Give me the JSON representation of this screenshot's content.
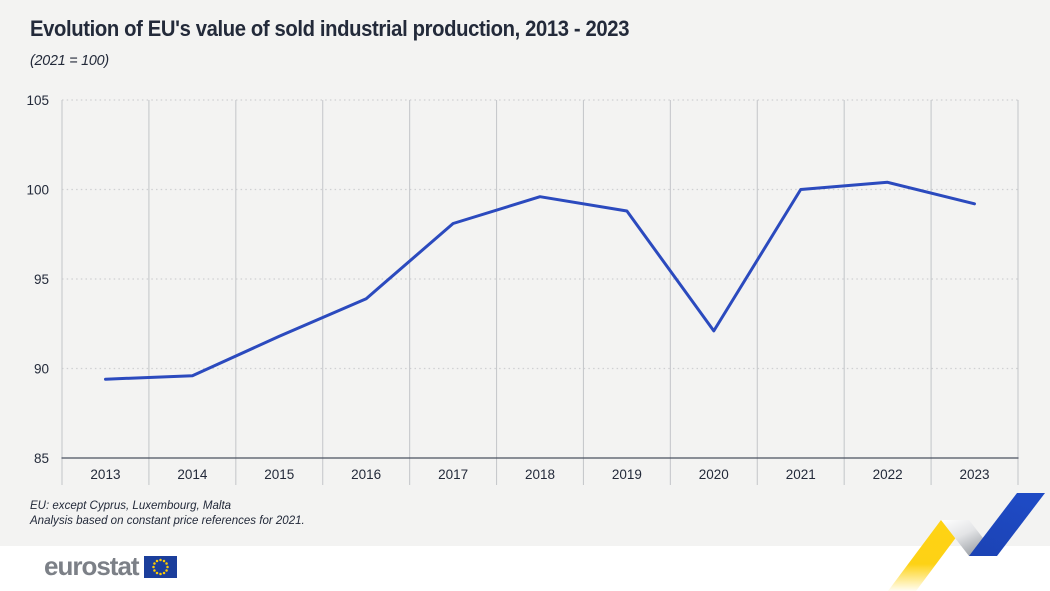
{
  "header": {
    "title": "Evolution of EU's value of sold industrial production, 2013 - 2023",
    "subtitle": "(2021 = 100)"
  },
  "chart_data": {
    "type": "line",
    "title": "Evolution of EU's value of sold industrial production, 2013 - 2023",
    "subtitle": "(2021 = 100)",
    "categories": [
      "2013",
      "2014",
      "2015",
      "2016",
      "2017",
      "2018",
      "2019",
      "2020",
      "2021",
      "2022",
      "2023"
    ],
    "values": [
      89.4,
      89.6,
      91.8,
      93.9,
      98.1,
      99.6,
      98.8,
      92.1,
      100.0,
      100.4,
      99.2
    ],
    "xlabel": "",
    "ylabel": "",
    "ylim": [
      85,
      105
    ],
    "yticks": [
      85,
      90,
      95,
      100,
      105
    ],
    "grid": "horizontal dotted lines, vertical solid column separators",
    "legend": "none",
    "line_color": "#2b4abe"
  },
  "footnotes": {
    "line1": "EU: except Cyprus, Luxembourg, Malta",
    "line2": "Analysis based on constant price references for 2021."
  },
  "logo": {
    "text": "eurostat",
    "flag_icon": "eu-flag-icon"
  },
  "colors": {
    "background": "#f3f3f2",
    "title_text": "#232a3a",
    "axis_line": "#4a5160",
    "grid_vertical": "#c7c9cc",
    "grid_dotted": "#cfd0d2",
    "line": "#2b4abe",
    "logo_gray": "#7c8087",
    "flag_blue": "#1b3e9b",
    "star_yellow": "#ffcc00",
    "ribbon_yellow": "#ffd314",
    "ribbon_blue": "#1c43b4"
  }
}
